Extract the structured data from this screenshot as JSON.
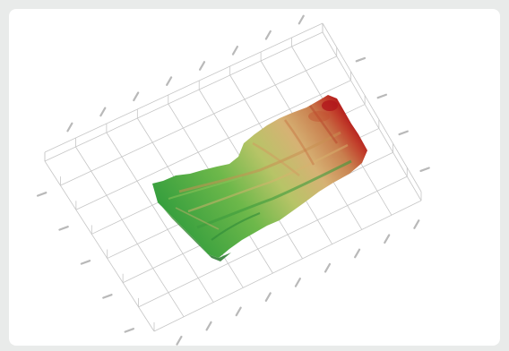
{
  "chart_data": {
    "type": "surface",
    "title": "",
    "xlabel": "",
    "ylabel": "",
    "zlabel": "",
    "grid": true,
    "colormap": [
      "#2e9b3c",
      "#6db84a",
      "#b7c467",
      "#d6b274",
      "#c9804f",
      "#c2402c",
      "#b01218"
    ],
    "grid_rows": 7,
    "grid_cols": 9,
    "top_ticks": [
      "",
      "",
      "",
      "",
      "",
      "",
      "",
      ""
    ],
    "right_ticks": [
      "",
      "",
      "",
      ""
    ],
    "left_ticks": [
      "",
      "",
      "",
      "",
      ""
    ],
    "bottom_ticks": [
      "",
      "",
      "",
      "",
      "",
      "",
      "",
      "",
      ""
    ]
  }
}
